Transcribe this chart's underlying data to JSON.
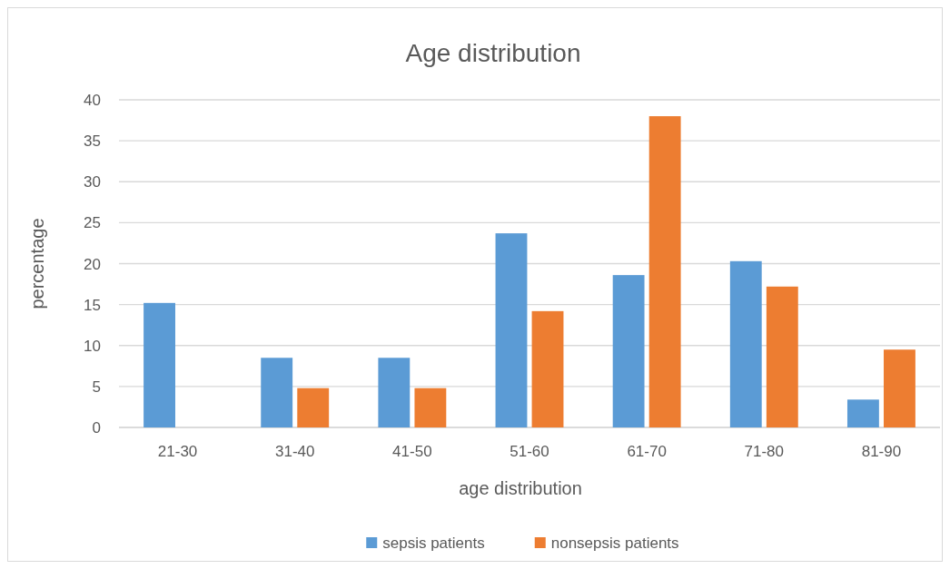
{
  "chart_data": {
    "type": "bar",
    "title": "Age distribution",
    "xlabel": "age distribution",
    "ylabel": "percentage",
    "categories": [
      "21-30",
      "31-40",
      "41-50",
      "51-60",
      "61-70",
      "71-80",
      "81-90"
    ],
    "series": [
      {
        "name": "sepsis patients",
        "color": "#5b9bd5",
        "values": [
          15.2,
          8.5,
          8.5,
          23.7,
          18.6,
          20.3,
          3.4
        ]
      },
      {
        "name": "nonsepsis patients",
        "color": "#ed7d31",
        "values": [
          0,
          4.8,
          4.8,
          14.2,
          38.0,
          17.2,
          9.5
        ]
      }
    ],
    "ylim": [
      0,
      40
    ],
    "yticks": [
      0,
      5,
      10,
      15,
      20,
      25,
      30,
      35,
      40
    ],
    "grid": "y",
    "legend": "bottom"
  }
}
